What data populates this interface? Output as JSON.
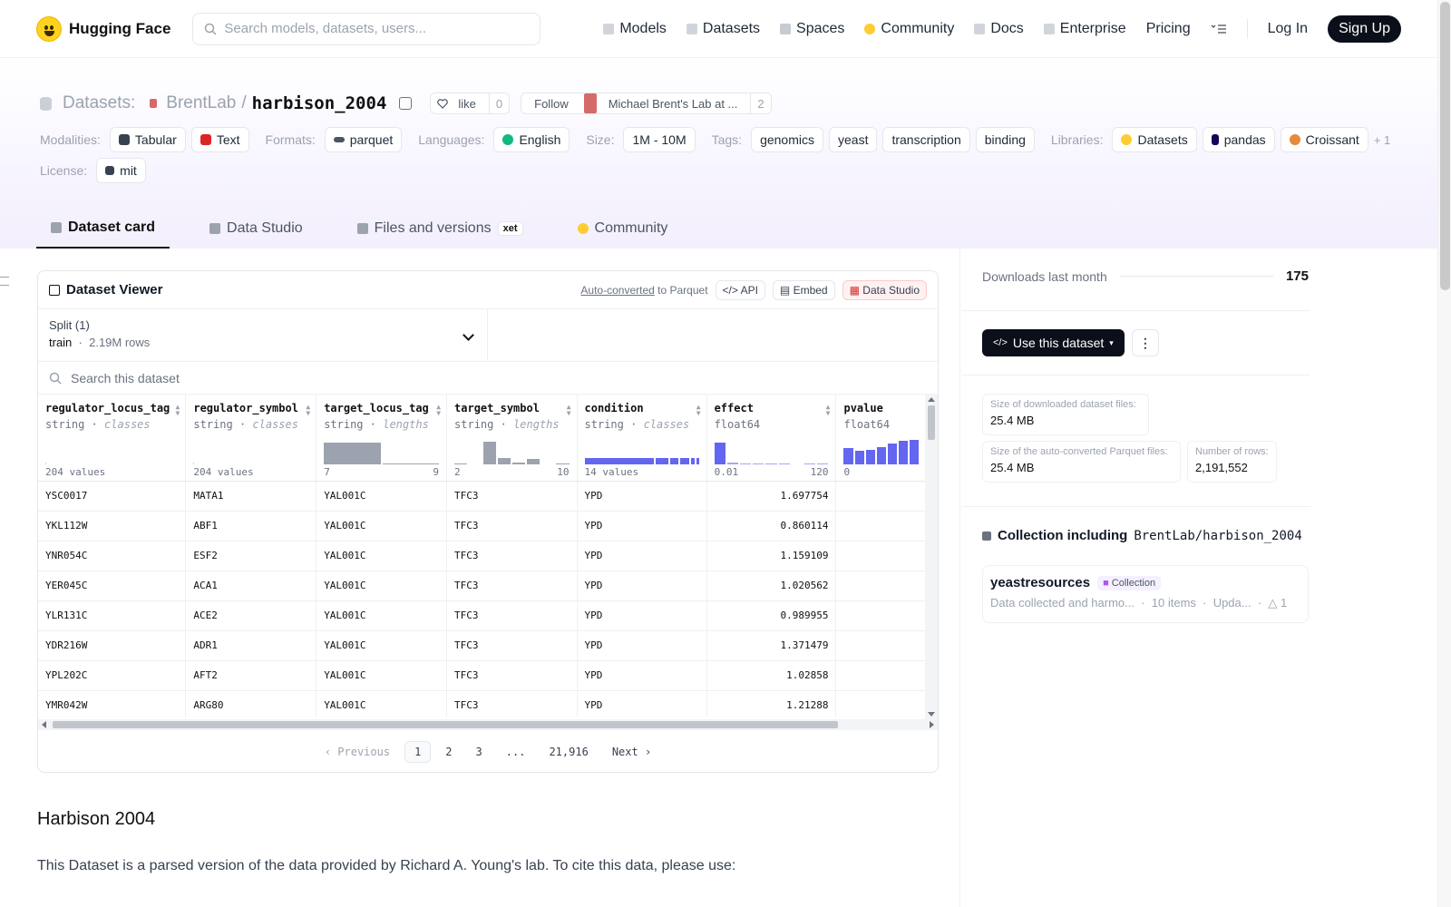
{
  "nav": {
    "brand": "Hugging Face",
    "search_placeholder": "Search models, datasets, users...",
    "links": [
      "Models",
      "Datasets",
      "Spaces",
      "Community",
      "Docs",
      "Enterprise",
      "Pricing"
    ],
    "login": "Log In",
    "signup": "Sign Up"
  },
  "header": {
    "section": "Datasets:",
    "org": "BrentLab",
    "slash": "/",
    "name": "harbison_2004",
    "like_label": "like",
    "like_count": "0",
    "follow_label": "Follow",
    "follow_org": "Michael Brent's Lab at ...",
    "follow_count": "2",
    "modalities_label": "Modalities:",
    "modalities": [
      "Tabular",
      "Text"
    ],
    "formats_label": "Formats:",
    "formats": [
      "parquet"
    ],
    "languages_label": "Languages:",
    "languages": [
      "English"
    ],
    "size_label": "Size:",
    "size": "1M - 10M",
    "tags_label": "Tags:",
    "tags": [
      "genomics",
      "yeast",
      "transcription",
      "binding"
    ],
    "libraries_label": "Libraries:",
    "libraries": [
      "Datasets",
      "pandas",
      "Croissant"
    ],
    "libraries_more": "+ 1",
    "license_label": "License:",
    "license": "mit"
  },
  "tabs": [
    {
      "label": "Dataset card",
      "active": true
    },
    {
      "label": "Data Studio"
    },
    {
      "label": "Files and versions",
      "badge": "xet"
    },
    {
      "label": "Community"
    }
  ],
  "viewer": {
    "title": "Dataset Viewer",
    "autoconv_link": "Auto-converted",
    "autoconv_rest": "to Parquet",
    "api": "API",
    "embed": "Embed",
    "studio": "Data Studio",
    "split_label": "Split (1)",
    "split_name": "train",
    "split_rows": "2.19M rows",
    "search_placeholder": "Search this dataset",
    "columns": [
      {
        "name": "regulator_locus_tag",
        "type": "string",
        "kind": "classes",
        "foot_left": "204 values",
        "foot_right": ""
      },
      {
        "name": "regulator_symbol",
        "type": "string",
        "kind": "classes",
        "foot_left": "204 values",
        "foot_right": ""
      },
      {
        "name": "target_locus_tag",
        "type": "string",
        "kind": "lengths",
        "foot_left": "7",
        "foot_right": "9"
      },
      {
        "name": "target_symbol",
        "type": "string",
        "kind": "lengths",
        "foot_left": "2",
        "foot_right": "10"
      },
      {
        "name": "condition",
        "type": "string",
        "kind": "classes",
        "foot_left": "14 values",
        "foot_right": ""
      },
      {
        "name": "effect",
        "type": "float64",
        "kind": "",
        "foot_left": "0.01",
        "foot_right": "120"
      },
      {
        "name": "pvalue",
        "type": "float64",
        "kind": "",
        "foot_left": "0",
        "foot_right": ""
      }
    ],
    "rows": [
      [
        "YSC0017",
        "MATA1",
        "YAL001C",
        "TFC3",
        "YPD",
        "1.697754",
        ""
      ],
      [
        "YKL112W",
        "ABF1",
        "YAL001C",
        "TFC3",
        "YPD",
        "0.860114",
        ""
      ],
      [
        "YNR054C",
        "ESF2",
        "YAL001C",
        "TFC3",
        "YPD",
        "1.159109",
        ""
      ],
      [
        "YER045C",
        "ACA1",
        "YAL001C",
        "TFC3",
        "YPD",
        "1.020562",
        ""
      ],
      [
        "YLR131C",
        "ACE2",
        "YAL001C",
        "TFC3",
        "YPD",
        "0.989955",
        ""
      ],
      [
        "YDR216W",
        "ADR1",
        "YAL001C",
        "TFC3",
        "YPD",
        "1.371479",
        ""
      ],
      [
        "YPL202C",
        "AFT2",
        "YAL001C",
        "TFC3",
        "YPD",
        "1.02858",
        ""
      ],
      [
        "YMR042W",
        "ARG80",
        "YAL001C",
        "TFC3",
        "YPD",
        "1.21288",
        ""
      ]
    ],
    "pager": {
      "prev": "Previous",
      "pages": [
        "1",
        "2",
        "3",
        "...",
        "21,916"
      ],
      "next": "Next",
      "current": "1"
    }
  },
  "readme": {
    "heading": "Harbison 2004",
    "text": "This Dataset is a parsed version of the data provided by Richard A. Young's lab. To cite this data, please use:"
  },
  "sidebar": {
    "downloads_label": "Downloads last month",
    "downloads_value": "175",
    "use_button": "Use this dataset",
    "stat_download_label": "Size of downloaded dataset files:",
    "stat_download_value": "25.4 MB",
    "stat_parquet_label": "Size of the auto-converted Parquet files:",
    "stat_parquet_value": "25.4 MB",
    "stat_rows_label": "Number of rows:",
    "stat_rows_value": "2,191,552",
    "collection_heading": "Collection including",
    "collection_repo": "BrentLab/harbison_2004",
    "collection_name": "yeastresources",
    "collection_badge": "Collection",
    "collection_desc": "Data collected and harmo...",
    "collection_items": "10 items",
    "collection_updated": "Upda...",
    "collection_upvotes": "1"
  },
  "colors": {
    "accent_bar": "#6366f1",
    "hist_gray": "#9ca3af",
    "dark": "#0b0f19"
  }
}
